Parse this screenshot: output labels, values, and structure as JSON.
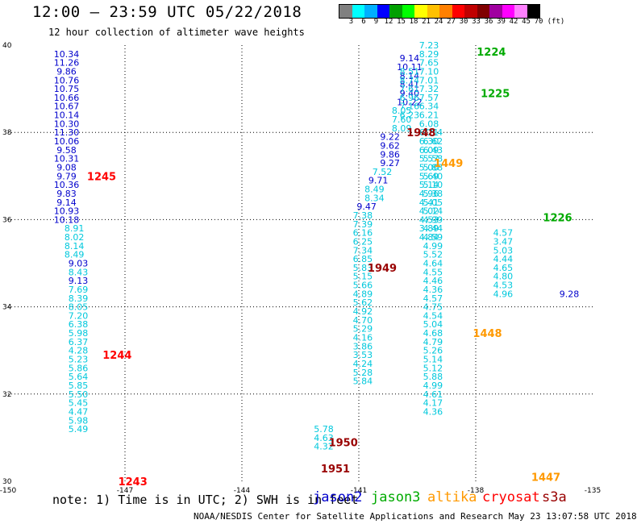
{
  "title": "12:00 – 23:59 UTC 05/22/2018",
  "subtitle": "12 hour collection of altimeter wave heights",
  "colorbar": {
    "colors": [
      "#808080",
      "#00ffff",
      "#00b0ff",
      "#0000ff",
      "#00a000",
      "#00ff00",
      "#ffff00",
      "#ffc000",
      "#ff8000",
      "#ff0000",
      "#c00000",
      "#800000",
      "#a000a0",
      "#ff00ff",
      "#ff80ff",
      "#000000"
    ],
    "labels": [
      "3",
      "6",
      "9",
      "12",
      "15",
      "18",
      "21",
      "24",
      "27",
      "30",
      "33",
      "36",
      "39",
      "42",
      "45",
      "70",
      "(ft)"
    ]
  },
  "note": "note: 1) Time is in UTC; 2) SWH is in feet",
  "legend": [
    {
      "name": "jason2",
      "color": "#0000cc"
    },
    {
      "name": "jason3",
      "color": "#00aa00"
    },
    {
      "name": "altika",
      "color": "#ff9900"
    },
    {
      "name": "cryosat",
      "color": "#ff0000"
    },
    {
      "name": "s3a",
      "color": "#990000"
    }
  ],
  "credit": "NOAA/NESDIS Center for Satellite Applications and Research    May 23 13:07:58 UTC 2018",
  "chart_data": {
    "type": "scatter",
    "title": "12:00 – 23:59 UTC 05/22/2018",
    "xlim": [
      -150,
      -135
    ],
    "ylim": [
      30,
      40
    ],
    "x_ticks": [
      "-150",
      "-147",
      "-144",
      "-141",
      "-138",
      "-135"
    ],
    "y_ticks": [
      "30",
      "32",
      "34",
      "36",
      "38",
      "40"
    ],
    "grid": true,
    "colors": {
      "light": "#00c8dc",
      "blue": "#0000cc",
      "green": "#00aa00",
      "orange": "#ff9900",
      "red": "#ff0000",
      "maroon": "#990000"
    },
    "tracks": [
      {
        "color": "blue",
        "x": -148.5,
        "y0": 39.8,
        "dy": -0.2,
        "values": [
          "10.34",
          "11.26",
          "9.86",
          "10.76",
          "10.75",
          "10.66",
          "10.67",
          "10.14",
          "10.30",
          "11.30",
          "10.06",
          "9.58",
          "10.31",
          "9.08",
          "9.79",
          "10.36",
          "9.83",
          "9.14",
          "10.93",
          "10.18"
        ]
      },
      {
        "color": "light",
        "x": -148.3,
        "y0": 35.8,
        "dy": -0.2,
        "values": [
          "8.91",
          "8.02",
          "8.14",
          "8.49"
        ]
      },
      {
        "color": "blue",
        "x": -148.2,
        "y0": 35.0,
        "dy": -0.2,
        "values": [
          "9.03"
        ]
      },
      {
        "color": "light",
        "x": -148.2,
        "y0": 34.8,
        "dy": -0.2,
        "values": [
          "8.43"
        ]
      },
      {
        "color": "blue",
        "x": -148.2,
        "y0": 34.6,
        "dy": -0.2,
        "values": [
          "9.13"
        ]
      },
      {
        "color": "light",
        "x": -148.2,
        "y0": 34.4,
        "dy": -0.2,
        "values": [
          "7.69",
          "8.39",
          "8.05",
          "7.20",
          "6.38",
          "5.98",
          "6.37",
          "4.28",
          "5.23",
          "5.86",
          "5.64",
          "5.85",
          "5.50",
          "5.45",
          "4.47",
          "5.98",
          "5.49"
        ]
      },
      {
        "color": "blue",
        "x": -139.7,
        "y0": 39.7,
        "dy": -0.2,
        "values": [
          "9.14",
          "10.11",
          "8.14",
          "8.41",
          "9.40",
          "10.22"
        ]
      },
      {
        "color": "light",
        "x": -139.9,
        "y0": 38.5,
        "dy": -0.2,
        "values": [
          "8.05",
          "7.60",
          "8.09"
        ]
      },
      {
        "color": "blue",
        "x": -140.2,
        "y0": 37.9,
        "dy": -0.2,
        "values": [
          "9.22",
          "9.62",
          "9.86",
          "9.27"
        ]
      },
      {
        "color": "light",
        "x": -140.4,
        "y0": 37.1,
        "dy": -0.2,
        "values": [
          "7.52"
        ]
      },
      {
        "color": "blue",
        "x": -140.5,
        "y0": 36.9,
        "dy": -0.2,
        "values": [
          "9.71"
        ]
      },
      {
        "color": "light",
        "x": -140.6,
        "y0": 36.7,
        "dy": -0.2,
        "values": [
          "8.49",
          "8.34"
        ]
      },
      {
        "color": "blue",
        "x": -140.8,
        "y0": 36.3,
        "dy": -0.2,
        "values": [
          "9.47"
        ]
      },
      {
        "color": "light",
        "x": -140.9,
        "y0": 36.1,
        "dy": -0.2,
        "values": [
          "7.38",
          "7.39",
          "6.16",
          "6.25",
          "7.34",
          "6.85",
          "5.83",
          "5.15",
          "5.66",
          "4.89",
          "5.62",
          "4.92",
          "4.70",
          "5.29",
          "4.16",
          "3.86",
          "3.53",
          "4.24",
          "5.28",
          "5.84"
        ]
      },
      {
        "color": "light",
        "x": -141.9,
        "y0": 31.2,
        "dy": -0.2,
        "values": [
          "5.78",
          "4.63",
          "4.32"
        ]
      },
      {
        "color": "light",
        "x": -139.2,
        "y0": 40.0,
        "dy": -0.2,
        "values": [
          "7.23",
          "8.29",
          "7.65",
          "7.10",
          "7.01",
          "7.32",
          "7.57",
          "6.34",
          "6.21",
          "6.08",
          "6.21",
          "6.30",
          "6.09",
          "5.57",
          "5.00",
          "5.69",
          "5.14",
          "4.96",
          "4.41",
          "4.02",
          "4.53",
          "3.89",
          "4.84"
        ]
      },
      {
        "color": "light",
        "x": -137.3,
        "y0": 35.7,
        "dy": -0.2,
        "values": [
          "4.57",
          "3.47",
          "5.03",
          "4.44",
          "4.65",
          "4.80",
          "4.53",
          "4.96"
        ]
      },
      {
        "color": "blue",
        "x": -135.6,
        "y0": 34.3,
        "dy": -0.2,
        "values": [
          "9.28"
        ]
      },
      {
        "color": "light",
        "x": -139.7,
        "y0": 39.4,
        "dy": -0.2,
        "values": [
          "8.51",
          "8.74",
          "7.61",
          "6.96",
          "7.16",
          "6.23"
        ]
      },
      {
        "color": "light",
        "x": -139.1,
        "y0": 38.0,
        "dy": -0.2,
        "values": [
          "7.14",
          "6.62",
          "6.43",
          "5.58",
          "5.88",
          "5.40",
          "5.10",
          "5.38",
          "5.05",
          "5.14",
          "4.99",
          "4.44",
          "4.59",
          "4.99",
          "5.52",
          "4.64",
          "4.55",
          "4.46",
          "4.36",
          "4.57",
          "4.75",
          "4.54",
          "5.04",
          "4.68",
          "4.79",
          "5.26",
          "5.14",
          "5.12",
          "5.88",
          "4.99",
          "4.61",
          "4.17",
          "4.36"
        ]
      }
    ],
    "times": [
      {
        "text": "1224",
        "x": -137.6,
        "y": 39.85,
        "color": "green"
      },
      {
        "text": "1225",
        "x": -137.5,
        "y": 38.9,
        "color": "green"
      },
      {
        "text": "1226",
        "x": -135.9,
        "y": 36.05,
        "color": "green"
      },
      {
        "text": "1245",
        "x": -147.6,
        "y": 37.0,
        "color": "red"
      },
      {
        "text": "1244",
        "x": -147.2,
        "y": 32.9,
        "color": "red"
      },
      {
        "text": "1243",
        "x": -146.8,
        "y": 30.0,
        "color": "red"
      },
      {
        "text": "1948",
        "x": -139.4,
        "y": 38.0,
        "color": "maroon"
      },
      {
        "text": "1949",
        "x": -140.4,
        "y": 34.9,
        "color": "maroon"
      },
      {
        "text": "1950",
        "x": -141.4,
        "y": 30.9,
        "color": "maroon"
      },
      {
        "text": "1951",
        "x": -141.6,
        "y": 30.3,
        "color": "maroon"
      },
      {
        "text": "1449",
        "x": -138.7,
        "y": 37.3,
        "color": "orange"
      },
      {
        "text": "1448",
        "x": -137.7,
        "y": 33.4,
        "color": "orange"
      },
      {
        "text": "1447",
        "x": -136.2,
        "y": 30.1,
        "color": "orange"
      }
    ]
  }
}
